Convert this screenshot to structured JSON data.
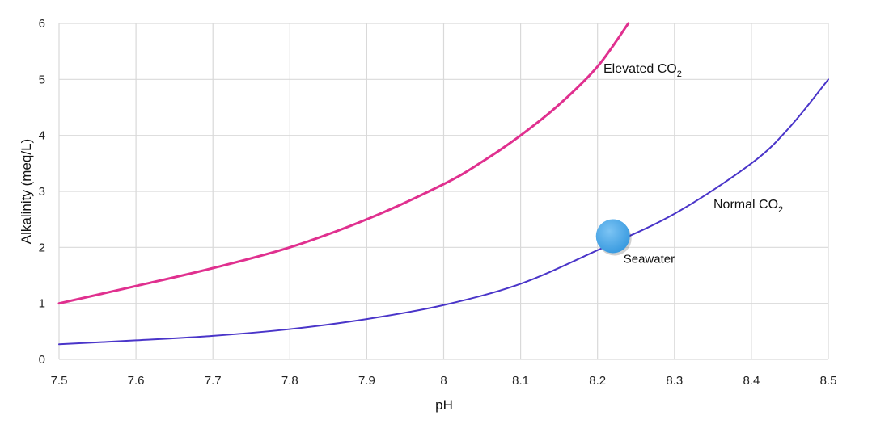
{
  "chart_data": {
    "type": "line",
    "title": "",
    "xlabel": "pH",
    "ylabel": "Alkalinity (meq/L)",
    "xlim": [
      7.5,
      8.5
    ],
    "ylim": [
      0,
      6
    ],
    "xticks": [
      7.5,
      7.6,
      7.7,
      7.8,
      7.9,
      8,
      8.1,
      8.2,
      8.3,
      8.4,
      8.5
    ],
    "yticks": [
      0,
      1,
      2,
      3,
      4,
      5,
      6
    ],
    "grid": true,
    "series": [
      {
        "name": "Elevated CO2",
        "label_main": "Elevated CO",
        "label_sub": "2",
        "color": "#e0308f",
        "x": [
          7.5,
          7.6,
          7.7,
          7.8,
          7.9,
          8.0,
          8.05,
          8.1,
          8.15,
          8.2,
          8.24
        ],
        "y": [
          1.0,
          1.31,
          1.63,
          2.0,
          2.5,
          3.13,
          3.53,
          4.0,
          4.55,
          5.23,
          6.0
        ]
      },
      {
        "name": "Normal CO2",
        "label_main": "Normal CO",
        "label_sub": "2",
        "color": "#4a35c9",
        "x": [
          7.5,
          7.6,
          7.7,
          7.8,
          7.9,
          8.0,
          8.1,
          8.2,
          8.3,
          8.4,
          8.45,
          8.5
        ],
        "y": [
          0.27,
          0.34,
          0.42,
          0.54,
          0.72,
          0.97,
          1.35,
          1.95,
          2.6,
          3.5,
          4.15,
          5.0
        ]
      }
    ],
    "annotations": [
      {
        "label": "Seawater",
        "x": 8.22,
        "y": 2.2,
        "color": "#3a9be0"
      }
    ]
  }
}
